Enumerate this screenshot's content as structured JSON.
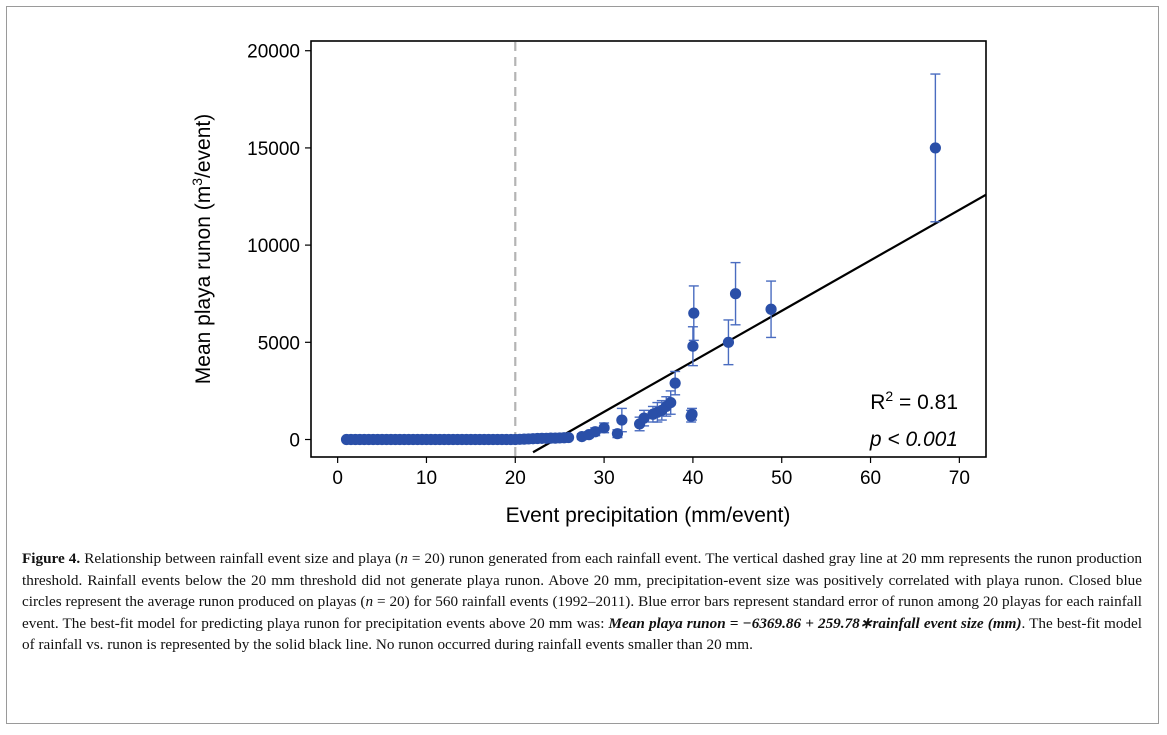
{
  "chart_data": {
    "type": "scatter",
    "xlabel": "Event precipitation (mm/event)",
    "ylabel_main": "Mean playa runon (m",
    "ylabel_sup": "3",
    "ylabel_tail": "/event)",
    "xlim": [
      -3,
      73
    ],
    "ylim": [
      -900,
      20500
    ],
    "xticks": [
      0,
      10,
      20,
      30,
      40,
      50,
      60,
      70
    ],
    "yticks": [
      0,
      5000,
      10000,
      15000,
      20000
    ],
    "threshold_x": 20,
    "fit_line": {
      "intercept": -6369.86,
      "slope": 259.78,
      "x_start": 22,
      "x_end": 73
    },
    "stats": {
      "r2_prefix": "R",
      "r2_sup": "2",
      "r2_suffix": " = 0.81",
      "p_text": "p < 0.001"
    },
    "colors": {
      "points": "#2a4fa8",
      "error_bars": "#4a6cc0",
      "fit": "#000000",
      "threshold": "#b4b4b4"
    },
    "series": [
      {
        "x": [
          1,
          1.5,
          2,
          2.5,
          3,
          3.5,
          4,
          4.5,
          5,
          5.5,
          6,
          6.5,
          7,
          7.5,
          8,
          8.5,
          9,
          9.5,
          10,
          10.5,
          11,
          11.5,
          12,
          12.5,
          13,
          13.5,
          14,
          14.5,
          15,
          15.5,
          16,
          16.5,
          17,
          17.5,
          18,
          18.5,
          19,
          19.5,
          20,
          20.5,
          21,
          21.5,
          22,
          22.5,
          23,
          23.5,
          24,
          24.5,
          25,
          25.5,
          26,
          27.5,
          28.3,
          29,
          30,
          31.5,
          32,
          34,
          34.5,
          35.5,
          36,
          36.5,
          37,
          37.5,
          38,
          39.8,
          39.9,
          40,
          40.1,
          44,
          44.8,
          48.8,
          67.3
        ],
        "y": [
          0,
          0,
          0,
          0,
          0,
          0,
          0,
          0,
          0,
          0,
          0,
          0,
          0,
          0,
          0,
          0,
          0,
          0,
          0,
          0,
          0,
          0,
          0,
          0,
          0,
          0,
          0,
          0,
          0,
          0,
          0,
          0,
          0,
          0,
          0,
          0,
          0,
          0,
          0,
          10,
          20,
          30,
          40,
          50,
          60,
          60,
          70,
          70,
          80,
          90,
          100,
          150,
          250,
          400,
          600,
          300,
          1000,
          800,
          1100,
          1300,
          1400,
          1500,
          1700,
          1900,
          2900,
          1200,
          1300,
          4800,
          6500,
          5000,
          7500,
          6700,
          15000
        ],
        "err": [
          0,
          0,
          0,
          0,
          0,
          0,
          0,
          0,
          0,
          0,
          0,
          0,
          0,
          0,
          0,
          0,
          0,
          0,
          0,
          0,
          0,
          0,
          0,
          0,
          0,
          0,
          0,
          0,
          0,
          0,
          0,
          0,
          0,
          0,
          0,
          0,
          0,
          0,
          0,
          20,
          30,
          40,
          50,
          60,
          70,
          70,
          80,
          80,
          90,
          100,
          110,
          150,
          150,
          200,
          250,
          200,
          600,
          350,
          400,
          400,
          500,
          500,
          500,
          600,
          600,
          300,
          300,
          1000,
          1400,
          1150,
          1600,
          1450,
          3800
        ]
      }
    ]
  },
  "caption": {
    "label": "Figure 4.",
    "text_1": " Relationship between rainfall event size and playa (",
    "n_sym_1": "n",
    "text_2": " = 20) runon generated from each rainfall event. The vertical dashed gray line at 20 mm represents the runon production threshold. Rainfall events below the 20 mm threshold did not generate playa runon. Above 20 mm, precipitation-event size was positively correlated with playa runon. Closed blue circles represent the average runon produced on playas (",
    "n_sym_2": "n",
    "text_3": " = 20) for 560 rainfall events (1992–2011). Blue error bars represent standard error of runon among 20 playas for each rainfall event. The best-fit model for predicting playa runon for precipitation events above 20 mm was: ",
    "equation": "Mean playa runon = −6369.86 + 259.78∗rainfall event size (mm)",
    "text_4": ". The best-fit model of rainfall vs. runon is represented by the solid black line. No runon occurred during rainfall events smaller than 20 mm."
  }
}
